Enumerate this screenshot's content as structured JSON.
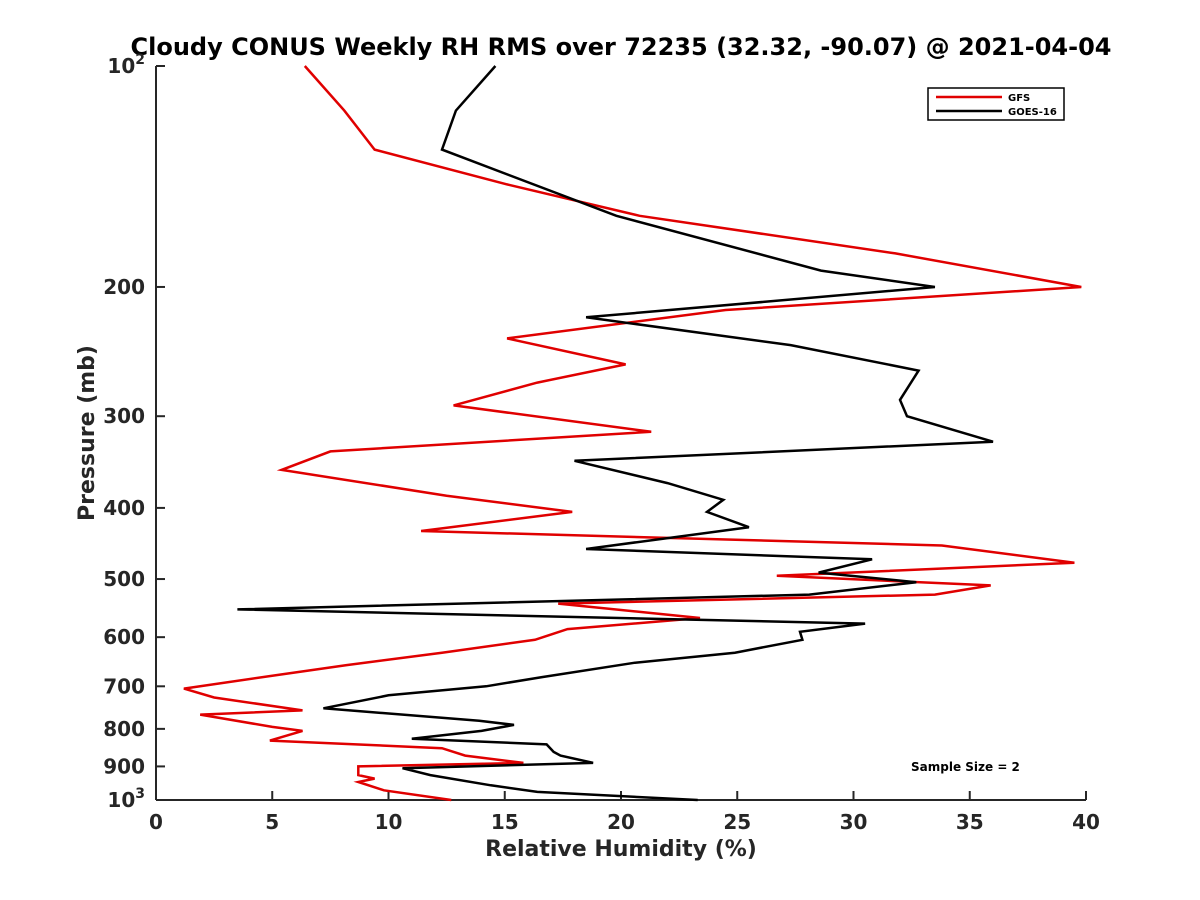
{
  "chart_data": {
    "type": "line",
    "title": "Cloudy CONUS Weekly RH RMS over 72235 (32.32, -90.07) @ 2021-04-04",
    "xlabel": "Relative Humidity (%)",
    "ylabel": "Pressure (mb)",
    "xlim": [
      0,
      40
    ],
    "ylim": [
      100,
      1000
    ],
    "yscale": "log",
    "y_reversed": true,
    "x_ticks": [
      "0",
      "5",
      "10",
      "15",
      "20",
      "25",
      "30",
      "35",
      "40"
    ],
    "x_tick_values": [
      0,
      5,
      10,
      15,
      20,
      25,
      30,
      35,
      40
    ],
    "y_ticks": [
      {
        "value": 100,
        "base": "10",
        "exp": "2"
      },
      {
        "value": 200,
        "label": "200"
      },
      {
        "value": 300,
        "label": "300"
      },
      {
        "value": 400,
        "label": "400"
      },
      {
        "value": 500,
        "label": "500"
      },
      {
        "value": 600,
        "label": "600"
      },
      {
        "value": 700,
        "label": "700"
      },
      {
        "value": 800,
        "label": "800"
      },
      {
        "value": 900,
        "label": "900"
      },
      {
        "value": 1000,
        "base": "10",
        "exp": "3"
      }
    ],
    "legend_position": "top-right",
    "annotation": "Sample Size = 2",
    "series": [
      {
        "name": "GFS",
        "color": "#e00000",
        "points": [
          [
            6.4,
            100
          ],
          [
            8.1,
            115
          ],
          [
            9.4,
            130
          ],
          [
            15.1,
            145
          ],
          [
            20.8,
            160
          ],
          [
            31.8,
            180
          ],
          [
            39.8,
            200
          ],
          [
            24.5,
            215
          ],
          [
            15.1,
            235
          ],
          [
            20.2,
            255
          ],
          [
            16.4,
            270
          ],
          [
            12.8,
            290
          ],
          [
            21.3,
            315
          ],
          [
            7.5,
            335
          ],
          [
            5.4,
            355
          ],
          [
            12.5,
            385
          ],
          [
            17.9,
            405
          ],
          [
            11.4,
            430
          ],
          [
            33.8,
            450
          ],
          [
            39.5,
            475
          ],
          [
            26.7,
            495
          ],
          [
            35.9,
            510
          ],
          [
            33.5,
            525
          ],
          [
            17.3,
            540
          ],
          [
            23.4,
            565
          ],
          [
            17.7,
            585
          ],
          [
            16.3,
            605
          ],
          [
            12.3,
            630
          ],
          [
            8.2,
            655
          ],
          [
            5.3,
            675
          ],
          [
            1.2,
            705
          ],
          [
            2.5,
            725
          ],
          [
            6.3,
            755
          ],
          [
            1.9,
            765
          ],
          [
            5.0,
            795
          ],
          [
            6.3,
            805
          ],
          [
            4.9,
            830
          ],
          [
            12.3,
            850
          ],
          [
            13.3,
            870
          ],
          [
            15.8,
            890
          ],
          [
            8.7,
            900
          ],
          [
            8.7,
            925
          ],
          [
            9.4,
            935
          ],
          [
            8.7,
            945
          ],
          [
            9.8,
            970
          ],
          [
            12.7,
            1000
          ]
        ]
      },
      {
        "name": "GOES-16",
        "color": "#000000",
        "points": [
          [
            14.6,
            100
          ],
          [
            12.9,
            115
          ],
          [
            12.3,
            130
          ],
          [
            19.8,
            160
          ],
          [
            28.6,
            190
          ],
          [
            33.5,
            200
          ],
          [
            18.5,
            220
          ],
          [
            27.3,
            240
          ],
          [
            32.8,
            260
          ],
          [
            32.0,
            285
          ],
          [
            32.3,
            300
          ],
          [
            36.0,
            325
          ],
          [
            18.0,
            345
          ],
          [
            22.0,
            370
          ],
          [
            24.4,
            390
          ],
          [
            23.7,
            405
          ],
          [
            25.5,
            425
          ],
          [
            18.5,
            455
          ],
          [
            30.8,
            470
          ],
          [
            28.5,
            490
          ],
          [
            32.7,
            505
          ],
          [
            28.1,
            525
          ],
          [
            3.5,
            550
          ],
          [
            30.5,
            575
          ],
          [
            27.7,
            590
          ],
          [
            27.8,
            605
          ],
          [
            24.9,
            630
          ],
          [
            20.6,
            650
          ],
          [
            16.6,
            680
          ],
          [
            14.2,
            700
          ],
          [
            10.0,
            720
          ],
          [
            7.2,
            750
          ],
          [
            13.9,
            780
          ],
          [
            15.4,
            790
          ],
          [
            14.0,
            805
          ],
          [
            11.0,
            825
          ],
          [
            16.8,
            840
          ],
          [
            17.1,
            860
          ],
          [
            17.4,
            870
          ],
          [
            18.8,
            890
          ],
          [
            10.6,
            905
          ],
          [
            11.8,
            925
          ],
          [
            14.4,
            955
          ],
          [
            16.4,
            975
          ],
          [
            23.3,
            1000
          ]
        ]
      }
    ]
  }
}
